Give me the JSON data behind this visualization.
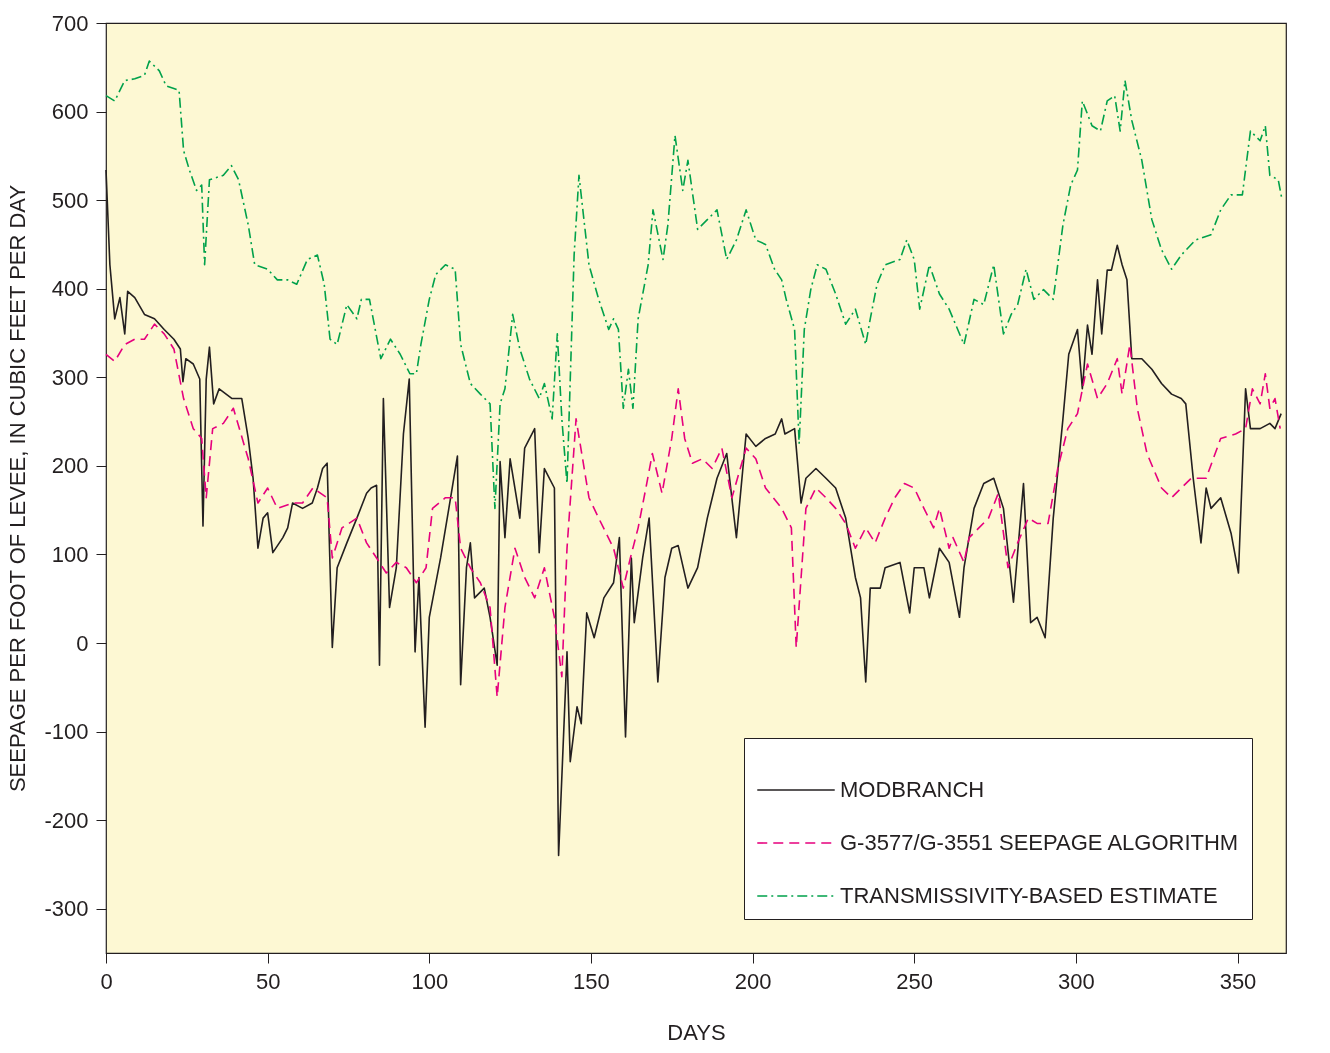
{
  "chart_data": {
    "type": "line",
    "xlabel": "DAYS",
    "ylabel": "SEEPAGE PER FOOT OF LEVEE, IN CUBIC  FEET PER DAY",
    "xlim": [
      0,
      365
    ],
    "xticks": [
      0,
      50,
      100,
      150,
      200,
      250,
      300,
      350
    ],
    "ylim": [
      -350,
      700
    ],
    "yticks": [
      -300,
      -200,
      -100,
      0,
      100,
      200,
      300,
      400,
      500,
      600,
      700
    ],
    "grid": false,
    "legend": "bottom right",
    "series": [
      {
        "name": "MODBRANCH",
        "color": "#231f20",
        "line_style": "solid",
        "x": [
          0,
          1.2,
          2.7,
          4.3,
          5.8,
          6.7,
          8.9,
          11.9,
          15,
          18,
          21,
          23,
          23.8,
          24.7,
          27,
          29,
          30,
          31,
          32,
          33.3,
          35,
          39,
          42,
          44,
          45.5,
          47,
          48.6,
          50,
          51.6,
          54.7,
          56.2,
          57.7,
          60.8,
          63.8,
          65.4,
          67,
          68.4,
          70,
          71.5,
          74.5,
          77.6,
          80.6,
          82,
          83.7,
          84.6,
          85.8,
          87.7,
          89.8,
          92,
          93.8,
          95.6,
          96.8,
          98.7,
          100,
          103.5,
          106.6,
          108.7,
          109.7,
          111.5,
          112.7,
          114,
          117,
          118.8,
          121,
          121.9,
          123.4,
          125,
          128,
          129.5,
          132.6,
          134,
          135.6,
          138.7,
          140,
          142.6,
          143.6,
          145.7,
          147,
          148.7,
          151,
          154,
          157,
          158.8,
          160.7,
          162.5,
          163.4,
          166,
          168,
          170.7,
          172.9,
          175,
          177,
          180,
          183,
          186,
          189,
          192,
          195,
          198,
          201,
          204,
          207,
          209,
          210,
          213,
          215,
          216.5,
          219.6,
          222.7,
          225.7,
          228.8,
          231.8,
          233.4,
          235,
          236.4,
          239.5,
          241,
          245.6,
          248.6,
          250,
          253,
          254.7,
          257.8,
          260.8,
          264,
          265.4,
          268.5,
          271.5,
          274.6,
          277.6,
          280.7,
          283.8,
          286,
          288,
          290.5,
          293,
          296,
          297.8,
          300.5,
          302,
          303.6,
          305,
          306.7,
          308,
          309.7,
          311,
          312.8,
          314.3,
          315.8,
          317.3,
          320.4,
          323.5,
          326.5,
          329.6,
          332.6,
          334,
          336.3,
          338.7,
          340.3,
          341.8,
          344.8,
          348,
          350.3,
          352.5,
          354,
          357,
          360,
          361.6,
          363.5
        ],
        "values": [
          534,
          427,
          366,
          390,
          349,
          397,
          390,
          371,
          366,
          354,
          343,
          332,
          295,
          321,
          315,
          298,
          132,
          298,
          334,
          270,
          287,
          276,
          276,
          231,
          186,
          107,
          141,
          147,
          102,
          119,
          130,
          158,
          152,
          158,
          175,
          197,
          203,
          -5,
          85,
          113,
          141,
          169,
          175,
          178,
          -25,
          276,
          40,
          85,
          236,
          298,
          -10,
          74,
          -95,
          29,
          96,
          164,
          211,
          -47,
          85,
          113,
          51,
          62,
          29,
          -25,
          205,
          119,
          208,
          141,
          220,
          242,
          102,
          197,
          175,
          -240,
          -10,
          -134,
          -72,
          -91,
          34,
          6,
          51,
          68,
          119,
          -106,
          96,
          23,
          96,
          141,
          -44,
          74,
          107,
          110,
          62,
          85,
          141,
          186,
          214,
          119,
          236,
          222,
          231,
          236,
          253,
          236,
          242,
          158,
          186,
          197,
          186,
          175,
          141,
          74,
          51,
          -44,
          62,
          62,
          85,
          91,
          34,
          85,
          85,
          51,
          107,
          91,
          29,
          85,
          152,
          180,
          186,
          152,
          46,
          180,
          23,
          29,
          6,
          141,
          253,
          326,
          354,
          287,
          359,
          326,
          410,
          349,
          421,
          421,
          449,
          427,
          410,
          321,
          321,
          309,
          293,
          281,
          276,
          270,
          186,
          113,
          175,
          152,
          164,
          124,
          79,
          287,
          242,
          242,
          248,
          242,
          259
        ]
      },
      {
        "name": "G-3577/G-3551 SEEPAGE ALGORITHM",
        "color": "#e6007e",
        "line_style": "dashed",
        "x": [
          0,
          2.7,
          5.8,
          8.9,
          11.9,
          15,
          18,
          21,
          24,
          27,
          29.6,
          31,
          33,
          36.3,
          39.4,
          44,
          47,
          50,
          53,
          57.7,
          60.8,
          64,
          68.4,
          70,
          73,
          77.6,
          80.6,
          83.7,
          86.7,
          89.8,
          92.9,
          96,
          99,
          101,
          105,
          108,
          109.7,
          112.7,
          115.8,
          118.8,
          121,
          123.4,
          126.5,
          129.5,
          132.6,
          135.6,
          138.7,
          141,
          142.6,
          145.4,
          149.4,
          152.4,
          157,
          160,
          162.2,
          164.6,
          167,
          169,
          172,
          175,
          177,
          179,
          181.4,
          184.5,
          187.5,
          190.5,
          193.6,
          198,
          201,
          204,
          209,
          212,
          213.5,
          216.5,
          219.6,
          222.7,
          225.7,
          228.8,
          231.8,
          235,
          237.9,
          241,
          244,
          247,
          250,
          253,
          256,
          257.8,
          260.8,
          262,
          265.4,
          267,
          270,
          273,
          276,
          279,
          282,
          285.3,
          288,
          291.4,
          294.4,
          297.5,
          300.5,
          303.6,
          306.7,
          309.7,
          312.8,
          314.3,
          316.7,
          319,
          322,
          326.5,
          329.6,
          332.6,
          335.7,
          340.3,
          344.8,
          349.4,
          352.5,
          354.6,
          357,
          358.6,
          360,
          361.6,
          363.2
        ],
        "values": [
          326,
          318,
          337,
          343,
          343,
          360,
          349,
          332,
          276,
          242,
          231,
          164,
          242,
          248,
          265,
          208,
          158,
          175,
          152,
          158,
          158,
          175,
          164,
          96,
          130,
          141,
          113,
          96,
          79,
          91,
          85,
          68,
          85,
          152,
          164,
          164,
          107,
          85,
          68,
          40,
          -61,
          40,
          107,
          74,
          51,
          85,
          29,
          -38,
          107,
          253,
          164,
          141,
          107,
          62,
          96,
          130,
          175,
          214,
          169,
          231,
          287,
          231,
          203,
          208,
          197,
          220,
          164,
          220,
          208,
          175,
          152,
          130,
          -5,
          152,
          175,
          164,
          152,
          135,
          107,
          130,
          113,
          141,
          164,
          180,
          175,
          152,
          130,
          152,
          107,
          119,
          91,
          119,
          130,
          141,
          169,
          85,
          113,
          141,
          135,
          135,
          197,
          242,
          259,
          315,
          276,
          293,
          321,
          281,
          337,
          265,
          214,
          175,
          164,
          175,
          186,
          186,
          231,
          236,
          242,
          287,
          270,
          304,
          265,
          276,
          242
        ]
      },
      {
        "name": "TRANSMISSIVITY-BASED ESTIMATE",
        "color": "#00a14b",
        "line_style": "dashdot",
        "x": [
          0,
          2.7,
          5.8,
          8.9,
          11.9,
          13.4,
          16.5,
          18.6,
          21,
          22.6,
          24,
          25.8,
          28,
          29.6,
          30.5,
          32,
          36.3,
          38.8,
          41,
          44,
          46,
          50,
          53,
          56.2,
          59,
          62.3,
          65.4,
          67.5,
          69.3,
          71.5,
          74.5,
          77.6,
          79,
          81.5,
          85,
          88,
          91,
          94,
          96,
          97.4,
          100,
          102,
          105,
          108,
          109.7,
          112.7,
          115.8,
          118.8,
          120.3,
          121.9,
          123.4,
          125.8,
          128,
          131,
          134,
          135.6,
          138,
          139.6,
          141,
          142.6,
          144.8,
          146.3,
          149.4,
          152.4,
          155.5,
          157,
          158.5,
          160,
          161.6,
          163,
          164.6,
          167.7,
          169.2,
          172.3,
          173.8,
          176,
          178.4,
          180,
          183,
          186,
          189,
          192,
          195,
          198,
          201,
          204,
          206.8,
          209,
          210.4,
          213,
          214.4,
          216,
          218,
          220,
          222.7,
          225.7,
          228.8,
          231.8,
          235,
          236.4,
          238.5,
          241,
          245.6,
          247.7,
          250,
          251.7,
          254.7,
          257.8,
          260.8,
          265.4,
          268.5,
          271.5,
          274.6,
          277.6,
          280,
          282,
          284.6,
          287,
          290,
          293,
          296,
          298.4,
          300.5,
          302,
          305,
          307.6,
          309.7,
          312,
          313.7,
          315.2,
          317.3,
          320.4,
          323.5,
          326.5,
          329.6,
          332.6,
          337,
          341.8,
          344.8,
          348,
          351.5,
          354,
          357,
          358.6,
          360,
          362.6,
          363.8
        ],
        "values": [
          618,
          612,
          635,
          637,
          641,
          657,
          646,
          629,
          626,
          624,
          556,
          534,
          511,
          517,
          427,
          523,
          528,
          539,
          523,
          472,
          427,
          422,
          410,
          410,
          405,
          433,
          438,
          405,
          343,
          337,
          382,
          366,
          388,
          388,
          321,
          343,
          326,
          304,
          304,
          337,
          388,
          416,
          427,
          422,
          337,
          293,
          281,
          270,
          152,
          270,
          287,
          371,
          332,
          298,
          276,
          293,
          253,
          349,
          253,
          180,
          438,
          528,
          427,
          388,
          354,
          366,
          354,
          265,
          309,
          265,
          366,
          427,
          489,
          433,
          472,
          573,
          511,
          545,
          467,
          478,
          489,
          433,
          455,
          489,
          455,
          450,
          422,
          410,
          388,
          354,
          225,
          354,
          399,
          427,
          422,
          394,
          360,
          377,
          337,
          366,
          405,
          427,
          433,
          455,
          433,
          377,
          427,
          394,
          377,
          337,
          388,
          382,
          427,
          349,
          371,
          382,
          422,
          388,
          399,
          388,
          472,
          517,
          534,
          612,
          584,
          578,
          612,
          618,
          578,
          635,
          590,
          545,
          478,
          444,
          422,
          438,
          455,
          461,
          489,
          506,
          506,
          578,
          567,
          584,
          528,
          523,
          500
        ]
      }
    ]
  }
}
